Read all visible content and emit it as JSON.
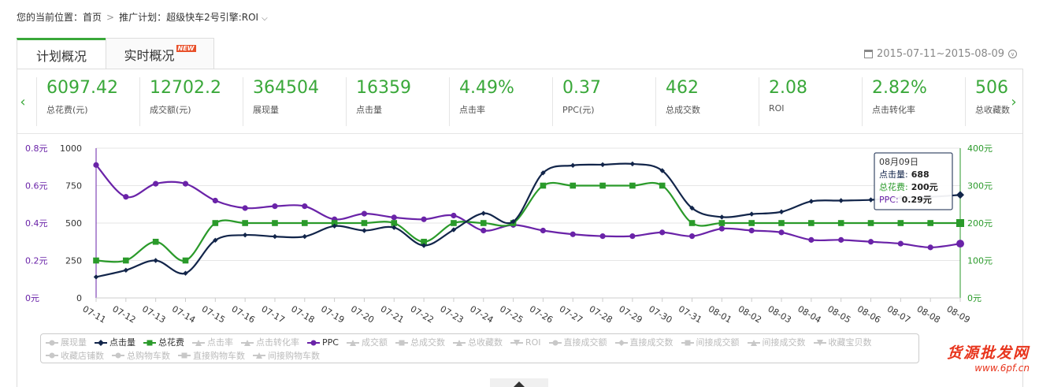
{
  "breadcrumb": {
    "label": "您的当前位置：",
    "home": "首页",
    "plan": "推广计划：超级快车2号引擎:ROI"
  },
  "tabs": [
    {
      "label": "计划概况",
      "active": true
    },
    {
      "label": "实时概况",
      "badge": "NEW",
      "active": false
    }
  ],
  "date_range": "2015-07-11~2015-08-09",
  "metrics": [
    {
      "value": "6097.42",
      "label": "总花费(元)"
    },
    {
      "value": "12702.2",
      "label": "成交额(元)"
    },
    {
      "value": "364504",
      "label": "展现量"
    },
    {
      "value": "16359",
      "label": "点击量"
    },
    {
      "value": "4.49%",
      "label": "点击率"
    },
    {
      "value": "0.37",
      "label": "PPC(元)"
    },
    {
      "value": "462",
      "label": "总成交数"
    },
    {
      "value": "2.08",
      "label": "ROI"
    },
    {
      "value": "2.82%",
      "label": "点击转化率"
    },
    {
      "value": "506",
      "label": "总收藏数"
    }
  ],
  "colors": {
    "accent": "#3aa83a",
    "clicks": "#12254a",
    "cost": "#2a9a2a",
    "ppc": "#6a23a8"
  },
  "chart_data": {
    "type": "line",
    "categories": [
      "07-11",
      "07-12",
      "07-13",
      "07-14",
      "07-15",
      "07-16",
      "07-17",
      "07-18",
      "07-19",
      "07-20",
      "07-21",
      "07-22",
      "07-23",
      "07-24",
      "07-25",
      "07-26",
      "07-27",
      "07-28",
      "07-29",
      "07-30",
      "07-31",
      "08-01",
      "08-02",
      "08-03",
      "08-04",
      "08-05",
      "08-06",
      "08-07",
      "08-08",
      "08-09"
    ],
    "axes": {
      "left_outer": {
        "ticks": [
          "0元",
          "0.2元",
          "0.4元",
          "0.6元",
          "0.8元"
        ],
        "range": [
          0,
          0.8
        ],
        "series": "PPC"
      },
      "left_inner": {
        "ticks": [
          "0",
          "250",
          "500",
          "750",
          "1000"
        ],
        "range": [
          0,
          1000
        ],
        "series": "点击量"
      },
      "right": {
        "ticks": [
          "0元",
          "100元",
          "200元",
          "300元",
          "400元"
        ],
        "range": [
          0,
          400
        ],
        "series": "总花费"
      }
    },
    "series": [
      {
        "name": "点击量",
        "axis": "left_inner",
        "values": [
          140,
          185,
          250,
          165,
          385,
          420,
          410,
          410,
          480,
          450,
          470,
          350,
          455,
          565,
          510,
          835,
          885,
          890,
          895,
          850,
          600,
          540,
          560,
          575,
          645,
          650,
          655,
          670,
          675,
          688
        ]
      },
      {
        "name": "总花费",
        "axis": "right",
        "values": [
          100,
          100,
          150,
          100,
          200,
          200,
          200,
          200,
          200,
          200,
          200,
          150,
          200,
          200,
          200,
          300,
          300,
          300,
          300,
          300,
          200,
          200,
          200,
          200,
          200,
          200,
          200,
          200,
          200,
          200
        ]
      },
      {
        "name": "PPC",
        "axis": "left_outer",
        "values": [
          0.71,
          0.54,
          0.61,
          0.61,
          0.52,
          0.48,
          0.49,
          0.49,
          0.42,
          0.45,
          0.43,
          0.42,
          0.44,
          0.36,
          0.39,
          0.36,
          0.34,
          0.33,
          0.33,
          0.35,
          0.33,
          0.37,
          0.36,
          0.35,
          0.31,
          0.31,
          0.3,
          0.29,
          0.27,
          0.29
        ]
      }
    ],
    "grid": true,
    "tooltip": {
      "title": "08月09日",
      "rows": [
        {
          "label": "点击量:",
          "value": "688"
        },
        {
          "label": "总花费:",
          "value": "200元"
        },
        {
          "label": "PPC:",
          "value": "0.29元"
        }
      ]
    }
  },
  "legend": [
    {
      "label": "展现量",
      "shape": "circle",
      "on": false
    },
    {
      "label": "点击量",
      "shape": "diamond",
      "on": true,
      "color": "#12254a"
    },
    {
      "label": "总花费",
      "shape": "square",
      "on": true,
      "color": "#2a9a2a"
    },
    {
      "label": "点击率",
      "shape": "triangle",
      "on": false
    },
    {
      "label": "点击转化率",
      "shape": "triangle",
      "on": false
    },
    {
      "label": "PPC",
      "shape": "circle",
      "on": true,
      "color": "#6a23a8"
    },
    {
      "label": "成交额",
      "shape": "triangle",
      "on": false
    },
    {
      "label": "总成交数",
      "shape": "square",
      "on": false
    },
    {
      "label": "总收藏数",
      "shape": "triangle",
      "on": false
    },
    {
      "label": "ROI",
      "shape": "triangle-down",
      "on": false
    },
    {
      "label": "直接成交额",
      "shape": "circle",
      "on": false
    },
    {
      "label": "直接成交数",
      "shape": "diamond",
      "on": false
    },
    {
      "label": "间接成交额",
      "shape": "square",
      "on": false
    },
    {
      "label": "间接成交数",
      "shape": "triangle",
      "on": false
    },
    {
      "label": "收藏宝贝数",
      "shape": "triangle-down",
      "on": false
    },
    {
      "label": "收藏店铺数",
      "shape": "circle",
      "on": false
    },
    {
      "label": "总购物车数",
      "shape": "circle",
      "on": false
    },
    {
      "label": "直接购物车数",
      "shape": "square",
      "on": false
    },
    {
      "label": "间接购物车数",
      "shape": "triangle",
      "on": false
    }
  ],
  "watermark": {
    "line1": "货源批发网",
    "line2": "www.6pf.cn"
  }
}
